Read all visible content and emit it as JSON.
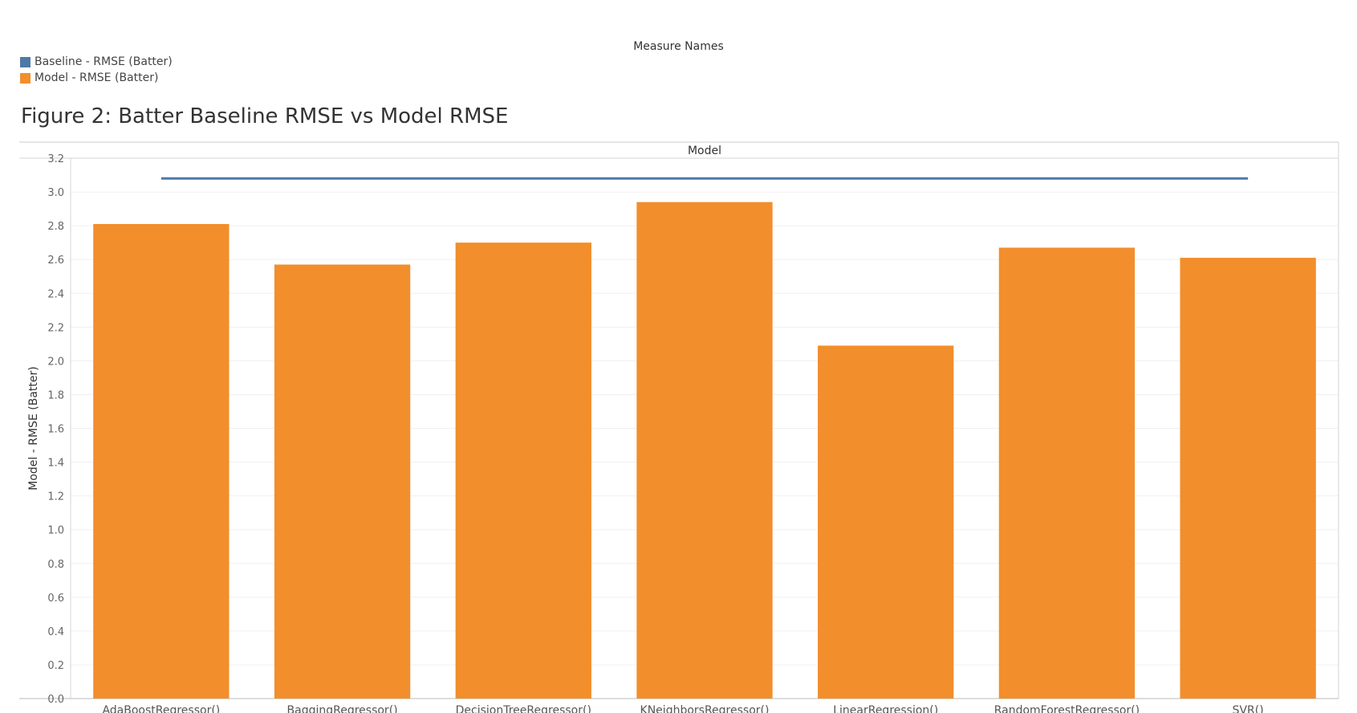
{
  "legend": {
    "title": "Measure Names",
    "items": [
      {
        "label": "Baseline - RMSE (Batter)",
        "color": "#4e79a7"
      },
      {
        "label": "Model - RMSE (Batter)",
        "color": "#f28e2b"
      }
    ]
  },
  "chart_data": {
    "type": "bar",
    "title": "Figure 2: Batter Baseline RMSE vs Model RMSE",
    "header": "Model",
    "xlabel": "",
    "ylabel": "Model - RMSE (Batter)",
    "categories": [
      "AdaBoostRegressor()",
      "BaggingRegressor()",
      "DecisionTreeRegressor()",
      "KNeighborsRegressor()",
      "LinearRegression()",
      "RandomForestRegressor()",
      "SVR()"
    ],
    "series": [
      {
        "name": "Model - RMSE (Batter)",
        "type": "bar",
        "color": "#f28e2b",
        "values": [
          2.81,
          2.57,
          2.7,
          2.94,
          2.09,
          2.67,
          2.61
        ]
      },
      {
        "name": "Baseline - RMSE (Batter)",
        "type": "line",
        "color": "#4e79a7",
        "values": [
          3.08,
          3.08,
          3.08,
          3.08,
          3.08,
          3.08,
          3.08
        ]
      }
    ],
    "ylim": [
      0,
      3.2
    ],
    "yticks": [
      "0.0",
      "0.2",
      "0.4",
      "0.6",
      "0.8",
      "1.0",
      "1.2",
      "1.4",
      "1.6",
      "1.8",
      "2.0",
      "2.2",
      "2.4",
      "2.6",
      "2.8",
      "3.0",
      "3.2"
    ],
    "grid": true,
    "legend_position": "top-left"
  }
}
